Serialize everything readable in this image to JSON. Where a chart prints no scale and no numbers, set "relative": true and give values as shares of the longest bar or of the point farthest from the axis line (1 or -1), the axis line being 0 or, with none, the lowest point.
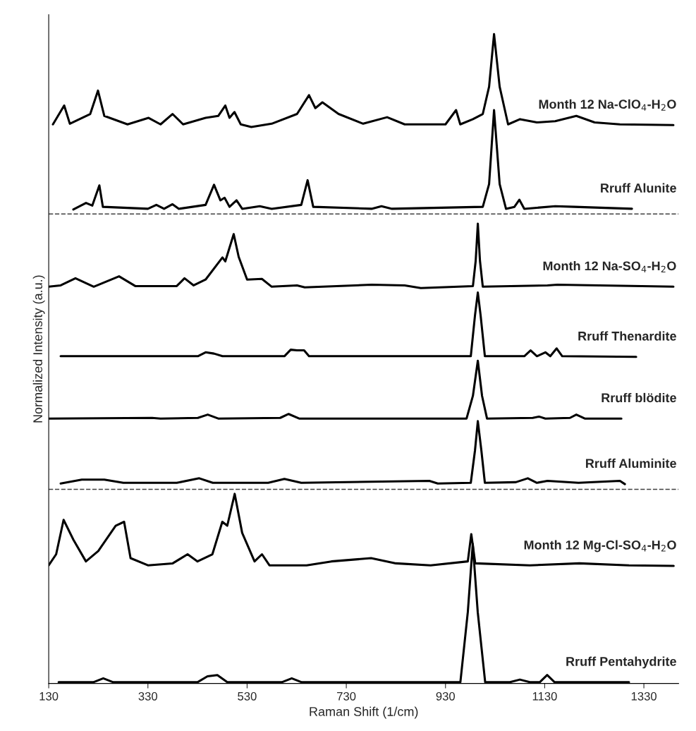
{
  "chart_data": {
    "type": "line",
    "relative": true,
    "xlabel": "Raman Shift (1/cm)",
    "ylabel": "Normalized Intensity (a.u.)",
    "xlim": [
      130,
      1400
    ],
    "xticks": [
      130,
      330,
      530,
      730,
      930,
      1130,
      1330
    ],
    "tick_labels": "x",
    "grid": false,
    "legend": false,
    "line_style": "solid",
    "marker": "none",
    "ref_lines": [
      {
        "axis": "y",
        "value": 0.723,
        "color": "#404040",
        "line_style": "dashed"
      },
      {
        "axis": "y",
        "value": 0.299,
        "color": "#404040",
        "line_style": "dashed"
      }
    ],
    "series": [
      {
        "name": "Month 12 Na-ClO$_{4}$-H$_{2}$O",
        "color": "#000000",
        "x": [
          138.5,
          161.2,
          172.6,
          213.7,
          229.3,
          242.1,
          288.9,
          331.4,
          355.5,
          379.6,
          400.9,
          446.3,
          471.8,
          486.0,
          494.5,
          504.5,
          517.2,
          538.5,
          579.6,
          630.7,
          654.8,
          667.6,
          681.8,
          714.4,
          764.0,
          812.3,
          847.7,
          930.0,
          951.3,
          959.8,
          985.3,
          1005.2,
          1017.9,
          1027.9,
          1039.2,
          1056.2,
          1080.3,
          1114.4,
          1151.2,
          1193.8,
          1230.7,
          1281.7,
          1389.5
        ],
        "values": [
          0.861,
          0.89,
          0.862,
          0.877,
          0.913,
          0.874,
          0.861,
          0.871,
          0.861,
          0.877,
          0.861,
          0.871,
          0.874,
          0.89,
          0.871,
          0.88,
          0.861,
          0.857,
          0.862,
          0.877,
          0.906,
          0.886,
          0.895,
          0.877,
          0.862,
          0.872,
          0.861,
          0.861,
          0.883,
          0.861,
          0.869,
          0.877,
          0.919,
          1.0,
          0.919,
          0.861,
          0.869,
          0.864,
          0.866,
          0.874,
          0.864,
          0.861,
          0.86
        ]
      },
      {
        "name": "Rruff Alunite",
        "color": "#000000",
        "x": [
          179.6,
          205.2,
          217.9,
          232.1,
          239.2,
          330.0,
          347.0,
          362.6,
          379.6,
          392.4,
          446.3,
          463.3,
          476.1,
          484.6,
          494.5,
          508.7,
          520.1,
          555.5,
          579.6,
          639.2,
          652.0,
          663.3,
          781.0,
          800.9,
          822.2,
          1005.2,
          1017.9,
          1027.9,
          1039.2,
          1052.0,
          1069.0,
          1078.9,
          1088.9,
          1151.2,
          1189.6,
          1305.9
        ],
        "values": [
          0.73,
          0.74,
          0.736,
          0.767,
          0.734,
          0.731,
          0.737,
          0.731,
          0.738,
          0.731,
          0.737,
          0.768,
          0.744,
          0.748,
          0.734,
          0.744,
          0.731,
          0.735,
          0.731,
          0.737,
          0.775,
          0.734,
          0.731,
          0.735,
          0.731,
          0.734,
          0.769,
          0.883,
          0.769,
          0.731,
          0.734,
          0.745,
          0.731,
          0.735,
          0.734,
          0.731
        ]
      },
      {
        "name": "Month 12 Na-SO$_{4}$-H$_{2}$O",
        "color": "#000000",
        "x": [
          130,
          154.1,
          183.9,
          220.8,
          271.8,
          304.5,
          388.1,
          403.8,
          422.2,
          446.3,
          480.3,
          486.0,
          503.0,
          513.0,
          530.0,
          559.8,
          579.6,
          630.7,
          646.3,
          781.0,
          847.7,
          880.3,
          985.3,
          990.9,
          995.2,
          999.5,
          1005.2,
          1135.6,
          1155.5,
          1389.5
        ],
        "values": [
          0.611,
          0.613,
          0.624,
          0.611,
          0.627,
          0.612,
          0.612,
          0.624,
          0.613,
          0.622,
          0.656,
          0.65,
          0.692,
          0.657,
          0.622,
          0.623,
          0.611,
          0.613,
          0.61,
          0.614,
          0.613,
          0.609,
          0.612,
          0.651,
          0.708,
          0.651,
          0.611,
          0.613,
          0.614,
          0.611
        ]
      },
      {
        "name": "Rruff Thenardite",
        "color": "#000000",
        "x": [
          154.1,
          430.7,
          446.3,
          463.3,
          480.3,
          605.2,
          617.9,
          630.7,
          644.9,
          654.8,
          981.0,
          989.5,
          995.2,
          1000.8,
          1009.4,
          1088.9,
          1101.6,
          1114.4,
          1131.4,
          1141.3,
          1154.1,
          1165.4,
          1314.4
        ],
        "values": [
          0.504,
          0.504,
          0.51,
          0.508,
          0.504,
          0.504,
          0.514,
          0.513,
          0.513,
          0.504,
          0.504,
          0.567,
          0.602,
          0.567,
          0.504,
          0.504,
          0.513,
          0.504,
          0.51,
          0.504,
          0.516,
          0.504,
          0.503
        ]
      },
      {
        "name": "Rruff blödite",
        "color": "#000000",
        "x": [
          130,
          338.5,
          355.5,
          430.7,
          450.6,
          471.8,
          596.7,
          613.7,
          634.9,
          972.5,
          985.3,
          995.2,
          1003.7,
          1013.7,
          1105.9,
          1118.6,
          1131.4,
          1181.0,
          1193.8,
          1210.8,
          1284.6
        ],
        "values": [
          0.408,
          0.409,
          0.408,
          0.409,
          0.414,
          0.408,
          0.409,
          0.415,
          0.408,
          0.408,
          0.443,
          0.497,
          0.443,
          0.408,
          0.409,
          0.411,
          0.408,
          0.409,
          0.414,
          0.408,
          0.408
        ]
      },
      {
        "name": "Rruff Aluminite",
        "color": "#000000",
        "x": [
          154.1,
          196.7,
          242.1,
          280.4,
          388.1,
          433.5,
          460.8,
          572.5,
          605.2,
          639.2,
          897.4,
          914.4,
          981.0,
          989.5,
          995.2,
          1002.3,
          1009.4,
          1071.8,
          1095.9,
          1114.4,
          1135.6,
          1198.1,
          1281.7,
          1291.7
        ],
        "values": [
          0.308,
          0.314,
          0.314,
          0.309,
          0.309,
          0.316,
          0.309,
          0.309,
          0.315,
          0.309,
          0.312,
          0.308,
          0.309,
          0.359,
          0.404,
          0.359,
          0.309,
          0.31,
          0.316,
          0.309,
          0.312,
          0.309,
          0.312,
          0.307
        ]
      },
      {
        "name": "Month 12 Mg-Cl-SO$_{4}$-H$_{2}$O",
        "color": "#000000",
        "x": [
          130,
          145,
          160,
          180,
          205,
          230,
          265,
          282,
          295,
          330,
          380,
          410,
          430,
          460,
          480,
          490,
          505,
          520,
          545,
          560,
          575,
          650,
          700,
          780,
          830,
          900,
          975,
          982,
          990,
          1100,
          1200,
          1300,
          1390
        ],
        "values": [
          0.182,
          0.199,
          0.252,
          0.221,
          0.188,
          0.204,
          0.243,
          0.249,
          0.193,
          0.182,
          0.185,
          0.199,
          0.188,
          0.199,
          0.249,
          0.243,
          0.292,
          0.232,
          0.188,
          0.199,
          0.182,
          0.182,
          0.188,
          0.193,
          0.185,
          0.182,
          0.188,
          0.23,
          0.185,
          0.182,
          0.185,
          0.182,
          0.181
        ]
      },
      {
        "name": "Rruff Pentahydrite",
        "color": "#000000",
        "x": [
          150,
          220,
          240,
          260,
          430,
          450,
          470,
          490,
          600,
          620,
          640,
          960,
          975,
          985,
          995,
          1010,
          1060,
          1080,
          1100,
          1120,
          1135,
          1150,
          1300
        ],
        "values": [
          0.002,
          0.002,
          0.008,
          0.002,
          0.002,
          0.011,
          0.013,
          0.002,
          0.002,
          0.008,
          0.002,
          0.002,
          0.11,
          0.215,
          0.11,
          0.002,
          0.002,
          0.006,
          0.002,
          0.002,
          0.013,
          0.002,
          0.002
        ]
      }
    ]
  }
}
